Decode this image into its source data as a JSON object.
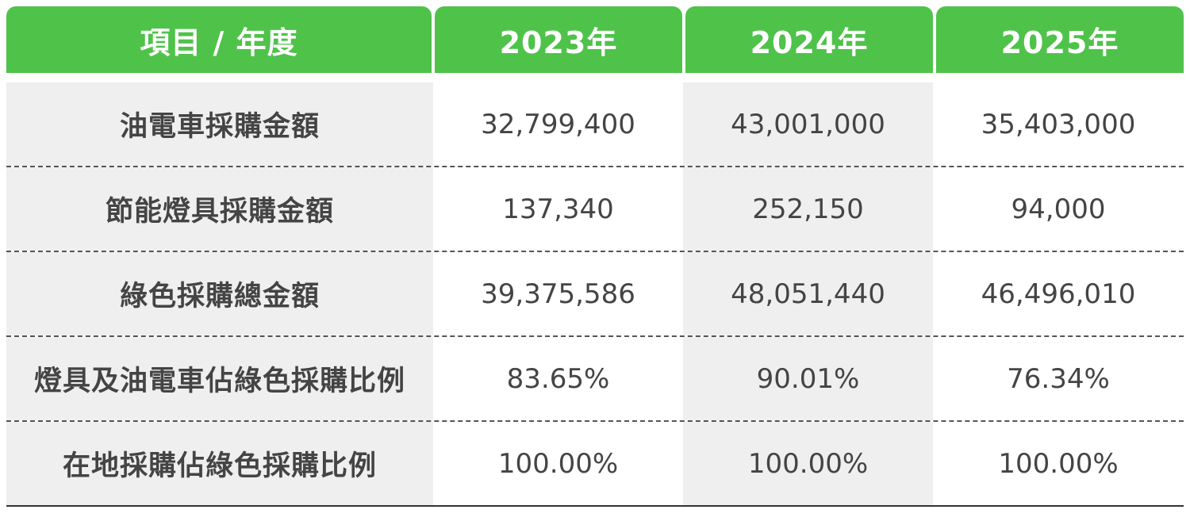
{
  "header": {
    "item_label": "項目 / 年度",
    "years": [
      "2023年",
      "2024年",
      "2025年"
    ]
  },
  "rows": [
    {
      "label": "油電車採購金額",
      "values": [
        "32,799,400",
        "43,001,000",
        "35,403,000"
      ]
    },
    {
      "label": "節能燈具採購金額",
      "values": [
        "137,340",
        "252,150",
        "94,000"
      ]
    },
    {
      "label": "綠色採購總金額",
      "values": [
        "39,375,586",
        "48,051,440",
        "46,496,010"
      ]
    },
    {
      "label": "燈具及油電車佔綠色採購比例",
      "values": [
        "83.65%",
        "90.01%",
        "76.34%"
      ]
    },
    {
      "label": "在地採購佔綠色採購比例",
      "values": [
        "100.00%",
        "100.00%",
        "100.00%"
      ]
    }
  ],
  "colors": {
    "header_bg": "#4fc24a",
    "header_text": "#ffffff",
    "shade_bg": "#efefef",
    "body_text": "#444444"
  }
}
